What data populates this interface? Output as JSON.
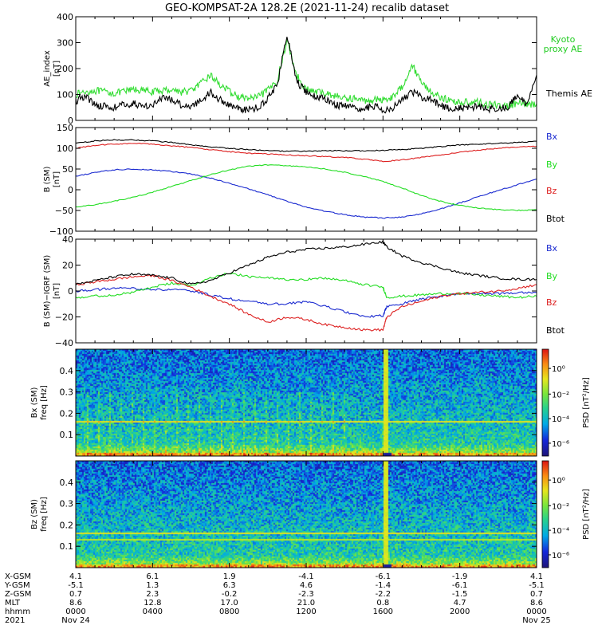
{
  "title": "GEO-KOMPSAT-2A 128.2E (2021-11-24) recalib dataset",
  "colors": {
    "black": "#000000",
    "green": "#22dd22",
    "red": "#dd2020",
    "blue": "#1a2ad0",
    "proxy": "#22cc22",
    "xaxis": "#e8b000"
  },
  "chart_data": [
    {
      "type": "line",
      "ylabel": "AE_index\n[nT]",
      "ylim": [
        0,
        400
      ],
      "yticks": [
        "0",
        "100",
        "200",
        "300",
        "400"
      ],
      "legend": [
        {
          "label": "Kyoto\nproxy AE",
          "color": "#22cc22"
        },
        {
          "label": "Themis AE",
          "color": "#000000"
        }
      ],
      "series": [
        {
          "name": "Kyoto proxy AE",
          "color": "#33dd33",
          "x": [
            0,
            0.5,
            1,
            1.5,
            2,
            2.5,
            3,
            3.5,
            4,
            4.5,
            5,
            5.5,
            6,
            6.5,
            7,
            7.5,
            8,
            8.5,
            9,
            9.5,
            10,
            10.5,
            11,
            11.5,
            12,
            12.5,
            13,
            13.5,
            14,
            14.5,
            15,
            15.5,
            16,
            16.5,
            17,
            17.5,
            18,
            18.5,
            19,
            19.5,
            20,
            20.5,
            21,
            21.5,
            22,
            22.5,
            23,
            23.5,
            24
          ],
          "y": [
            100,
            110,
            115,
            110,
            105,
            110,
            120,
            115,
            110,
            115,
            120,
            110,
            115,
            140,
            175,
            140,
            110,
            90,
            85,
            90,
            115,
            155,
            310,
            175,
            120,
            110,
            105,
            95,
            85,
            85,
            75,
            80,
            80,
            90,
            130,
            215,
            150,
            110,
            90,
            75,
            70,
            70,
            70,
            60,
            60,
            55,
            65,
            60,
            65
          ]
        },
        {
          "name": "Themis AE",
          "color": "#000000",
          "x": [
            0,
            0.5,
            1,
            1.5,
            2,
            2.5,
            3,
            3.5,
            4,
            4.5,
            5,
            5.5,
            6,
            6.5,
            7,
            7.5,
            8,
            8.5,
            9,
            9.5,
            10,
            10.5,
            11,
            11.5,
            12,
            12.5,
            13,
            13.5,
            14,
            14.5,
            15,
            15.5,
            16,
            16.5,
            17,
            17.5,
            18,
            18.5,
            19,
            19.5,
            20,
            20.5,
            21,
            21.5,
            22,
            22.5,
            23,
            23.5,
            24
          ],
          "y": [
            75,
            95,
            60,
            55,
            50,
            60,
            65,
            55,
            60,
            85,
            80,
            60,
            55,
            75,
            110,
            80,
            60,
            45,
            40,
            50,
            85,
            140,
            330,
            150,
            110,
            90,
            85,
            60,
            55,
            45,
            45,
            55,
            40,
            50,
            80,
            110,
            90,
            80,
            60,
            45,
            45,
            50,
            55,
            45,
            45,
            50,
            95,
            60,
            175
          ]
        }
      ]
    },
    {
      "type": "line",
      "ylabel": "B (SM)\n[nT]",
      "ylim": [
        -100,
        150
      ],
      "yticks": [
        "−100",
        "−50",
        "0",
        "50",
        "100",
        "150"
      ],
      "legend": [
        {
          "label": "Bx",
          "color": "#1a2ad0"
        },
        {
          "label": "By",
          "color": "#22dd22"
        },
        {
          "label": "Bz",
          "color": "#dd2020"
        },
        {
          "label": "Btot",
          "color": "#000000"
        }
      ],
      "series": [
        {
          "name": "Bx",
          "color": "#1a2ad0",
          "x": [
            0,
            1,
            2,
            3,
            4,
            5,
            6,
            7,
            8,
            9,
            10,
            11,
            12,
            13,
            14,
            15,
            16,
            17,
            18,
            19,
            20,
            21,
            22,
            23,
            24
          ],
          "y": [
            32,
            42,
            48,
            50,
            48,
            44,
            38,
            28,
            16,
            2,
            -12,
            -28,
            -42,
            -52,
            -60,
            -66,
            -68,
            -66,
            -58,
            -46,
            -32,
            -16,
            -2,
            12,
            26
          ]
        },
        {
          "name": "By",
          "color": "#22dd22",
          "x": [
            0,
            1,
            2,
            3,
            4,
            5,
            6,
            7,
            8,
            9,
            10,
            11,
            12,
            13,
            14,
            15,
            16,
            17,
            18,
            19,
            20,
            21,
            22,
            23,
            24
          ],
          "y": [
            -42,
            -36,
            -28,
            -18,
            -6,
            8,
            22,
            36,
            48,
            57,
            60,
            58,
            55,
            50,
            42,
            32,
            20,
            4,
            -14,
            -28,
            -38,
            -44,
            -48,
            -50,
            -48
          ]
        },
        {
          "name": "Bz",
          "color": "#dd2020",
          "x": [
            0,
            1,
            2,
            3,
            4,
            5,
            6,
            7,
            8,
            9,
            10,
            11,
            12,
            13,
            14,
            15,
            16,
            17,
            18,
            19,
            20,
            21,
            22,
            23,
            24
          ],
          "y": [
            100,
            107,
            110,
            112,
            110,
            106,
            102,
            97,
            92,
            88,
            86,
            84,
            82,
            80,
            78,
            74,
            68,
            72,
            78,
            84,
            90,
            96,
            100,
            103,
            105
          ]
        },
        {
          "name": "Btot",
          "color": "#000000",
          "x": [
            0,
            1,
            2,
            3,
            4,
            5,
            6,
            7,
            8,
            9,
            10,
            11,
            12,
            13,
            14,
            15,
            16,
            17,
            18,
            19,
            20,
            21,
            22,
            23,
            24
          ],
          "y": [
            112,
            118,
            120,
            120,
            118,
            114,
            108,
            103,
            100,
            97,
            94,
            93,
            93,
            94,
            94,
            94,
            95,
            97,
            100,
            104,
            108,
            110,
            112,
            114,
            117
          ]
        }
      ]
    },
    {
      "type": "line",
      "ylabel": "B (SM)−IGRF (SM)\n[nT]",
      "ylim": [
        -40,
        40
      ],
      "yticks": [
        "−40",
        "−20",
        "0",
        "20",
        "40"
      ],
      "legend": [
        {
          "label": "Bx",
          "color": "#1a2ad0"
        },
        {
          "label": "By",
          "color": "#22dd22"
        },
        {
          "label": "Bz",
          "color": "#dd2020"
        },
        {
          "label": "Btot",
          "color": "#000000"
        }
      ],
      "series": [
        {
          "name": "Bx",
          "color": "#1a2ad0",
          "x": [
            0,
            1,
            2,
            3,
            4,
            5,
            6,
            7,
            8,
            9,
            10,
            11,
            12,
            13,
            14,
            15,
            16,
            16.2,
            17,
            18,
            19,
            20,
            21,
            22,
            23,
            24
          ],
          "y": [
            0,
            1,
            2,
            2,
            1,
            1,
            0,
            -3,
            -6,
            -8,
            -10,
            -10,
            -8,
            -12,
            -16,
            -20,
            -19,
            -12,
            -10,
            -6,
            -4,
            -2,
            -2,
            -2,
            -1,
            -1
          ]
        },
        {
          "name": "By",
          "color": "#22dd22",
          "x": [
            0,
            1,
            2,
            3,
            4,
            5,
            6,
            7,
            8,
            9,
            10,
            11,
            12,
            13,
            14,
            15,
            16,
            16.2,
            17,
            18,
            19,
            20,
            21,
            22,
            23,
            24
          ],
          "y": [
            -5,
            -4,
            -3,
            -1,
            3,
            6,
            4,
            10,
            14,
            11,
            10,
            9,
            9,
            10,
            8,
            5,
            3,
            -5,
            -4,
            -3,
            -2,
            -2,
            -3,
            -4,
            -5,
            -4
          ]
        },
        {
          "name": "Bz",
          "color": "#dd2020",
          "x": [
            0,
            1,
            2,
            3,
            4,
            5,
            6,
            7,
            8,
            9,
            10,
            11,
            12,
            13,
            14,
            15,
            16,
            16.2,
            17,
            18,
            19,
            20,
            21,
            22,
            23,
            24
          ],
          "y": [
            5,
            7,
            9,
            11,
            12,
            8,
            3,
            -4,
            -10,
            -18,
            -24,
            -20,
            -22,
            -26,
            -28,
            -30,
            -30,
            -20,
            -12,
            -8,
            -4,
            -2,
            -1,
            0,
            2,
            5
          ]
        },
        {
          "name": "Btot",
          "color": "#000000",
          "x": [
            0,
            1,
            2,
            3,
            4,
            5,
            6,
            7,
            8,
            9,
            10,
            11,
            12,
            13,
            14,
            15,
            16,
            16.2,
            17,
            18,
            19,
            20,
            21,
            22,
            23,
            24
          ],
          "y": [
            5,
            8,
            11,
            13,
            12,
            10,
            5,
            8,
            14,
            20,
            26,
            30,
            32,
            33,
            34,
            36,
            38,
            34,
            27,
            22,
            18,
            14,
            12,
            10,
            9,
            9
          ]
        }
      ]
    },
    {
      "type": "heatmap",
      "ylabel": "Bx (SM)\nfreq [Hz]",
      "ylim": [
        0,
        0.5
      ],
      "yticks": [
        "0.1",
        "0.2",
        "0.3",
        "0.4"
      ],
      "colorbar_label": "PSD [nT²/Hz]",
      "colorbar_ticks": [
        "10⁰",
        "10⁻²",
        "10⁻⁴",
        "10⁻⁶"
      ],
      "features": {
        "line_freq": 0.165,
        "broadband_hour": 16.1
      }
    },
    {
      "type": "heatmap",
      "ylabel": "Bz (SM)\nfreq [Hz]",
      "ylim": [
        0,
        0.5
      ],
      "yticks": [
        "0.1",
        "0.2",
        "0.3",
        "0.4"
      ],
      "colorbar_label": "PSD [nT²/Hz]",
      "colorbar_ticks": [
        "10⁰",
        "10⁻²",
        "10⁻⁴",
        "10⁻⁶"
      ],
      "features": {
        "line_freq": 0.165,
        "line_freq2": 0.135,
        "broadband_hour": 16.1
      }
    }
  ],
  "xaxis": {
    "row_labels": [
      "X-GSM",
      "Y-GSM",
      "Z-GSM",
      "MLT",
      "hhmm",
      "2021"
    ],
    "columns": [
      [
        "4.1",
        "-5.1",
        "0.7",
        "8.6",
        "0000",
        "Nov 24"
      ],
      [
        "6.1",
        "1.3",
        "2.3",
        "12.8",
        "0400",
        ""
      ],
      [
        "1.9",
        "6.3",
        "-0.2",
        "17.0",
        "0800",
        ""
      ],
      [
        "-4.1",
        "4.6",
        "-2.3",
        "21.0",
        "1200",
        ""
      ],
      [
        "-6.1",
        "-1.4",
        "-2.2",
        "0.8",
        "1600",
        ""
      ],
      [
        "-1.9",
        "-6.1",
        "-1.5",
        "4.7",
        "2000",
        ""
      ],
      [
        "4.1",
        "-5.1",
        "0.7",
        "8.6",
        "0000",
        "Nov 25"
      ]
    ]
  }
}
